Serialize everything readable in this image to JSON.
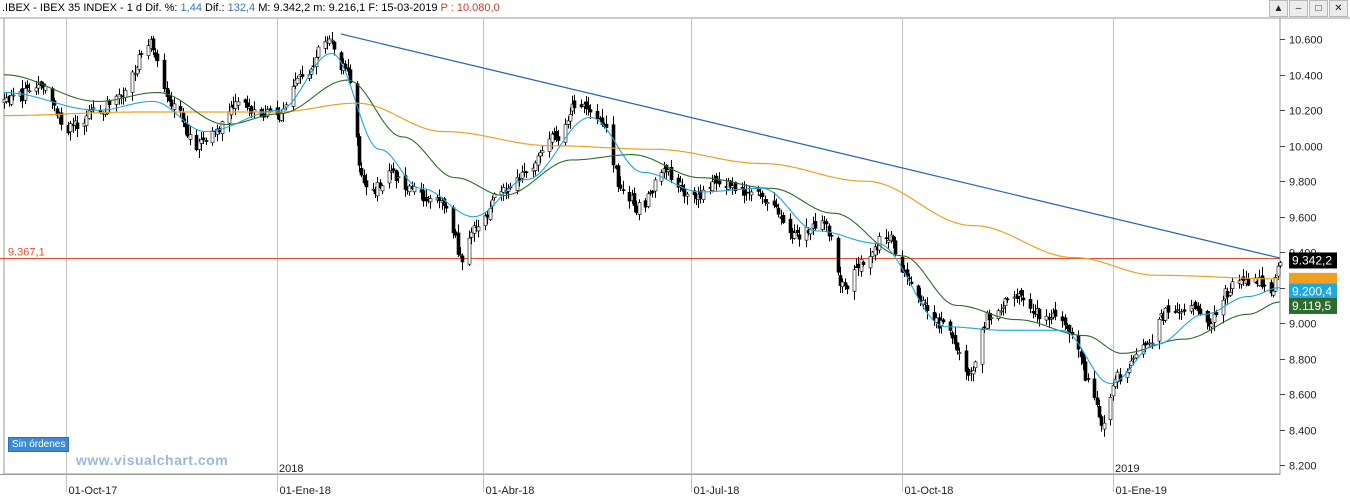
{
  "header": {
    "symbol": ".IBEX - IBEX 35 INDEX - 1 d",
    "dif_pct_label": "Dif. %:",
    "dif_pct": "1,44",
    "dif_label": "Dif.:",
    "dif": "132,4",
    "max_label": "M:",
    "max": "9.342,2",
    "min_label": "m:",
    "min": "9.216,1",
    "date_label": "F:",
    "date": "15-03-2019",
    "price_label": "P :",
    "price": "10.080,0"
  },
  "window_buttons": [
    "▲",
    "–",
    "□",
    "✕"
  ],
  "orders_label": "Sin órdenes",
  "watermark": "www.visualchart.com",
  "colors": {
    "up": "#ffffff",
    "down": "#000000",
    "ma_fast": "#1ea7e1",
    "ma_mid": "#2e6b2e",
    "ma_slow": "#f0a020",
    "trendline": "#1f5fbf",
    "hline": "#e0502a"
  },
  "chart_data": {
    "type": "candlestick",
    "title": "",
    "y_axis": {
      "min": 8150,
      "max": 10720,
      "ticks": [
        8200,
        8400,
        8600,
        8800,
        9000,
        9200,
        9400,
        9600,
        9800,
        10000,
        10200,
        10400,
        10600
      ],
      "tick_labels": [
        "8.200",
        "8.400",
        "8.600",
        "8.800",
        "9.000",
        "9.200",
        "9.400",
        "9.600",
        "9.800",
        "10.000",
        "10.200",
        "10.400",
        "10.600"
      ]
    },
    "x_axis": {
      "start": "2017-09-04",
      "end": "2019-03-15",
      "major_ticks": [
        {
          "date": "2017-10-01",
          "label": "01-Oct-17"
        },
        {
          "date": "2018-01-01",
          "label": "01-Ene-18"
        },
        {
          "date": "2018-04-01",
          "label": "01-Abr-18"
        },
        {
          "date": "2018-07-01",
          "label": "01-Jul-18"
        },
        {
          "date": "2018-10-01",
          "label": "01-Oct-18"
        },
        {
          "date": "2019-01-01",
          "label": "01-Ene-19"
        }
      ],
      "year_labels": [
        {
          "date": "2018-01-01",
          "label": "2018"
        },
        {
          "date": "2019-01-01",
          "label": "2019"
        }
      ]
    },
    "close_path": [
      [
        "2017-09-04",
        10250
      ],
      [
        "2017-09-20",
        10320
      ],
      [
        "2017-10-03",
        10100
      ],
      [
        "2017-10-12",
        10180
      ],
      [
        "2017-10-25",
        10280
      ],
      [
        "2017-11-06",
        10580
      ],
      [
        "2017-11-16",
        10220
      ],
      [
        "2017-11-28",
        10000
      ],
      [
        "2017-12-06",
        10100
      ],
      [
        "2017-12-14",
        10250
      ],
      [
        "2017-12-22",
        10200
      ],
      [
        "2018-01-02",
        10150
      ],
      [
        "2018-01-12",
        10400
      ],
      [
        "2018-01-24",
        10600
      ],
      [
        "2018-02-01",
        10400
      ],
      [
        "2018-02-08",
        9800
      ],
      [
        "2018-02-12",
        9750
      ],
      [
        "2018-02-20",
        9850
      ],
      [
        "2018-03-01",
        9750
      ],
      [
        "2018-03-08",
        9700
      ],
      [
        "2018-03-16",
        9650
      ],
      [
        "2018-03-23",
        9350
      ],
      [
        "2018-03-29",
        9550
      ],
      [
        "2018-04-10",
        9750
      ],
      [
        "2018-04-20",
        9850
      ],
      [
        "2018-05-02",
        10050
      ],
      [
        "2018-05-14",
        10250
      ],
      [
        "2018-05-24",
        10100
      ],
      [
        "2018-06-01",
        9750
      ],
      [
        "2018-06-08",
        9650
      ],
      [
        "2018-06-20",
        9850
      ],
      [
        "2018-07-02",
        9700
      ],
      [
        "2018-07-12",
        9800
      ],
      [
        "2018-07-24",
        9750
      ],
      [
        "2018-08-03",
        9700
      ],
      [
        "2018-08-14",
        9480
      ],
      [
        "2018-08-28",
        9550
      ],
      [
        "2018-09-06",
        9200
      ],
      [
        "2018-09-14",
        9350
      ],
      [
        "2018-09-25",
        9500
      ],
      [
        "2018-10-02",
        9300
      ],
      [
        "2018-10-10",
        9100
      ],
      [
        "2018-10-22",
        8950
      ],
      [
        "2018-10-30",
        8700
      ],
      [
        "2018-11-08",
        9050
      ],
      [
        "2018-11-20",
        9150
      ],
      [
        "2018-11-30",
        9050
      ],
      [
        "2018-12-07",
        9050
      ],
      [
        "2018-12-14",
        8950
      ],
      [
        "2018-12-21",
        8700
      ],
      [
        "2018-12-27",
        8450
      ],
      [
        "2019-01-04",
        8700
      ],
      [
        "2019-01-14",
        8850
      ],
      [
        "2019-01-24",
        9050
      ],
      [
        "2019-02-01",
        9100
      ],
      [
        "2019-02-12",
        9000
      ],
      [
        "2019-02-22",
        9200
      ],
      [
        "2019-03-04",
        9250
      ],
      [
        "2019-03-12",
        9200
      ],
      [
        "2019-03-15",
        9342
      ]
    ],
    "ma_fast_path": [
      [
        "2017-09-04",
        10300
      ],
      [
        "2017-10-15",
        10200
      ],
      [
        "2017-11-08",
        10250
      ],
      [
        "2017-12-01",
        10080
      ],
      [
        "2018-01-02",
        10200
      ],
      [
        "2018-01-25",
        10520
      ],
      [
        "2018-02-15",
        9980
      ],
      [
        "2018-03-05",
        9760
      ],
      [
        "2018-03-28",
        9600
      ],
      [
        "2018-04-20",
        9810
      ],
      [
        "2018-05-18",
        10160
      ],
      [
        "2018-06-10",
        9850
      ],
      [
        "2018-07-05",
        9740
      ],
      [
        "2018-08-01",
        9760
      ],
      [
        "2018-08-25",
        9520
      ],
      [
        "2018-09-20",
        9450
      ],
      [
        "2018-10-20",
        8980
      ],
      [
        "2018-11-15",
        8960
      ],
      [
        "2018-12-10",
        8960
      ],
      [
        "2018-12-31",
        8660
      ],
      [
        "2019-01-20",
        8880
      ],
      [
        "2019-02-10",
        9050
      ],
      [
        "2019-03-01",
        9150
      ],
      [
        "2019-03-15",
        9200
      ]
    ],
    "ma_mid_path": [
      [
        "2017-09-04",
        10400
      ],
      [
        "2017-10-15",
        10250
      ],
      [
        "2017-11-10",
        10300
      ],
      [
        "2017-12-10",
        10120
      ],
      [
        "2018-01-02",
        10180
      ],
      [
        "2018-02-01",
        10370
      ],
      [
        "2018-02-25",
        10050
      ],
      [
        "2018-03-20",
        9820
      ],
      [
        "2018-04-10",
        9720
      ],
      [
        "2018-05-10",
        9920
      ],
      [
        "2018-06-05",
        9950
      ],
      [
        "2018-07-05",
        9820
      ],
      [
        "2018-08-05",
        9760
      ],
      [
        "2018-09-01",
        9620
      ],
      [
        "2018-10-01",
        9380
      ],
      [
        "2018-10-25",
        9100
      ],
      [
        "2018-11-20",
        9020
      ],
      [
        "2018-12-20",
        8930
      ],
      [
        "2019-01-05",
        8830
      ],
      [
        "2019-02-01",
        8910
      ],
      [
        "2019-03-01",
        9050
      ],
      [
        "2019-03-15",
        9119.5
      ]
    ],
    "ma_slow_path": [
      [
        "2017-09-04",
        10170
      ],
      [
        "2017-11-01",
        10190
      ],
      [
        "2018-01-01",
        10190
      ],
      [
        "2018-02-05",
        10240
      ],
      [
        "2018-03-15",
        10080
      ],
      [
        "2018-05-01",
        10000
      ],
      [
        "2018-06-15",
        9980
      ],
      [
        "2018-08-01",
        9900
      ],
      [
        "2018-09-15",
        9800
      ],
      [
        "2018-11-01",
        9550
      ],
      [
        "2018-12-15",
        9370
      ],
      [
        "2019-01-20",
        9270
      ],
      [
        "2019-03-15",
        9250
      ]
    ],
    "trendline": {
      "start": [
        "2018-01-29",
        10630
      ],
      "end": [
        "2019-03-15",
        9367
      ]
    },
    "hline": {
      "value": 9367.1,
      "label": "9.367,1"
    },
    "last_values": [
      {
        "name": "close",
        "label": "9.342,2",
        "value": 9342.2
      },
      {
        "name": "ma_slow",
        "label": "",
        "value": 9250
      },
      {
        "name": "ma_fast",
        "label": "9.200,4",
        "value": 9200.4
      },
      {
        "name": "ma_mid",
        "label": "9.119,5",
        "value": 9119.5
      }
    ]
  }
}
